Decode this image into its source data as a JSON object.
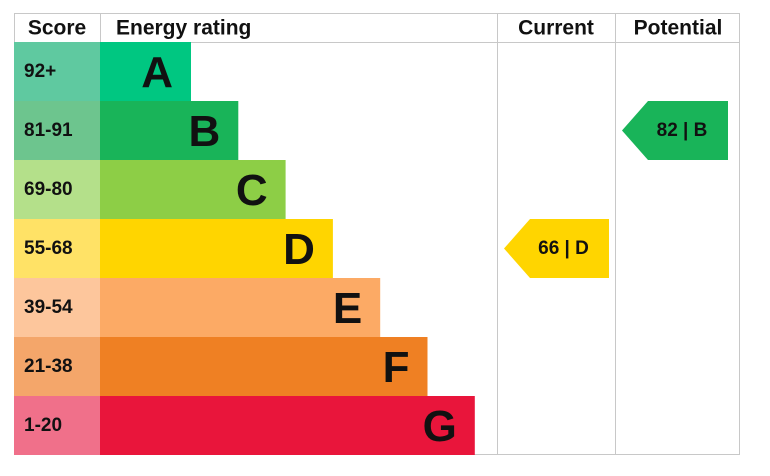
{
  "header": {
    "score": "Score",
    "rating": "Energy rating",
    "current": "Current",
    "potential": "Potential"
  },
  "bands": [
    {
      "score": "92+",
      "letter": "A",
      "color": "#00c781",
      "score_color": "#5fc9a0"
    },
    {
      "score": "81-91",
      "letter": "B",
      "color": "#19b459",
      "score_color": "#6dc58e"
    },
    {
      "score": "69-80",
      "letter": "C",
      "color": "#8dce46",
      "score_color": "#b4e08a"
    },
    {
      "score": "55-68",
      "letter": "D",
      "color": "#ffd500",
      "score_color": "#ffe266"
    },
    {
      "score": "39-54",
      "letter": "E",
      "color": "#fcaa65",
      "score_color": "#fdc69c"
    },
    {
      "score": "21-38",
      "letter": "F",
      "color": "#ef8023",
      "score_color": "#f4a66a"
    },
    {
      "score": "1-20",
      "letter": "G",
      "color": "#e9153b",
      "score_color": "#f0708a"
    }
  ],
  "current": {
    "label": "66 | D"
  },
  "potential": {
    "label": "82 | B"
  }
}
